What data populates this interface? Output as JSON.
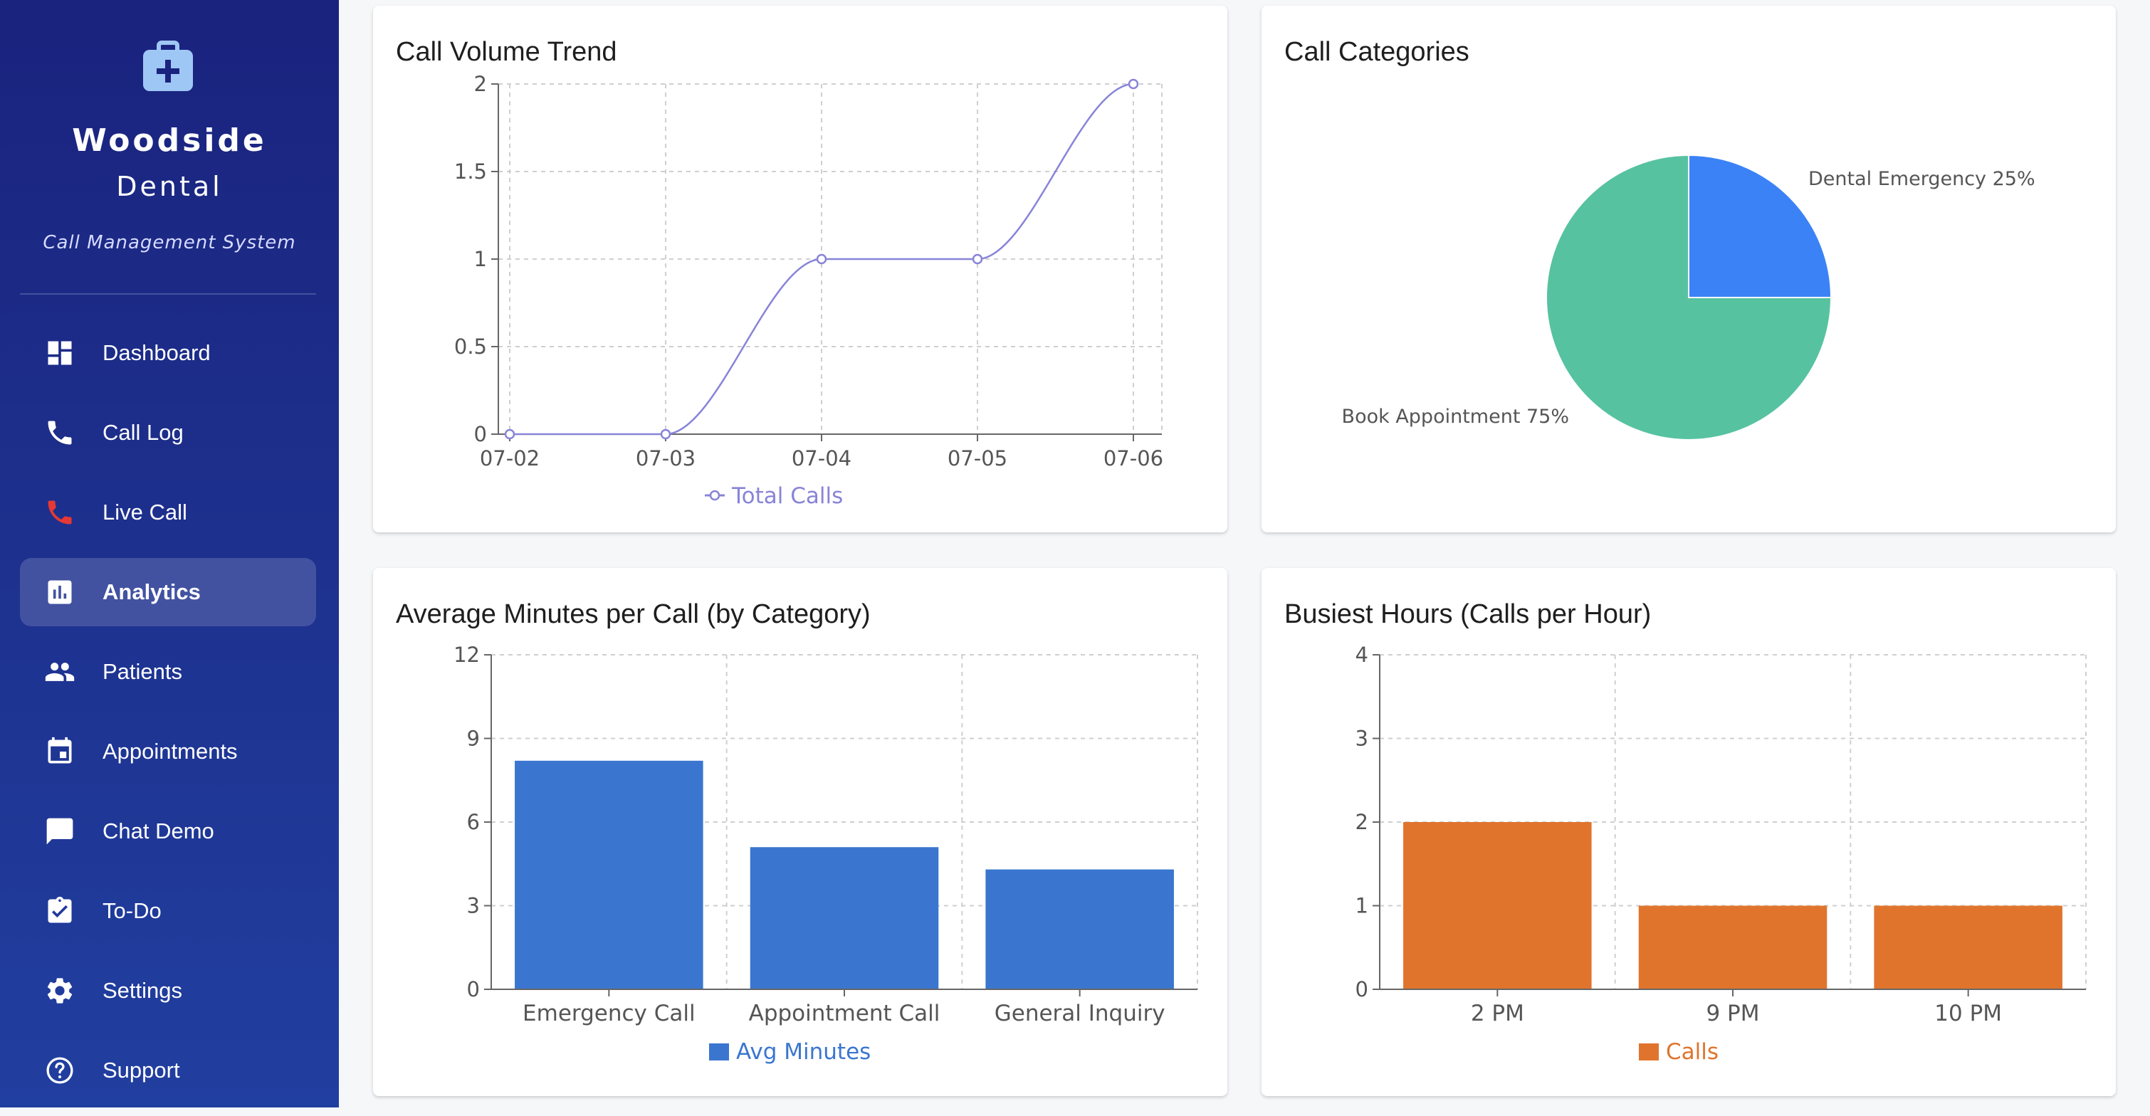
{
  "brand": {
    "name_line1": "Woodside",
    "name_line2": "Dental",
    "tagline": "Call Management System",
    "logo_icon": "medical-kit-icon"
  },
  "sidebar": {
    "items": [
      {
        "label": "Dashboard",
        "icon": "dashboard-icon",
        "active": false
      },
      {
        "label": "Call Log",
        "icon": "phone-icon",
        "active": false
      },
      {
        "label": "Live Call",
        "icon": "phone-live-icon",
        "active": false
      },
      {
        "label": "Analytics",
        "icon": "analytics-icon",
        "active": true
      },
      {
        "label": "Patients",
        "icon": "people-icon",
        "active": false
      },
      {
        "label": "Appointments",
        "icon": "calendar-icon",
        "active": false
      },
      {
        "label": "Chat Demo",
        "icon": "chat-icon",
        "active": false
      },
      {
        "label": "To-Do",
        "icon": "clipboard-check-icon",
        "active": false
      },
      {
        "label": "Settings",
        "icon": "gear-icon",
        "active": false
      },
      {
        "label": "Support",
        "icon": "help-icon",
        "active": false
      }
    ]
  },
  "colors": {
    "line": "#8884d8",
    "pie_emergency": "#3b82f6",
    "pie_appointment": "#56c2a0",
    "bar_minutes": "#3a76cf",
    "bar_calls": "#e0742d",
    "live_call_icon": "#e53935"
  },
  "cards": {
    "call_volume": {
      "title": "Call Volume Trend"
    },
    "call_categories": {
      "title": "Call Categories"
    },
    "avg_minutes": {
      "title": "Average Minutes per Call (by Category)"
    },
    "busiest_hours": {
      "title": "Busiest Hours (Calls per Hour)"
    }
  },
  "chart_data": [
    {
      "type": "line",
      "title": "Call Volume Trend",
      "x": [
        "07-02",
        "07-03",
        "07-04",
        "07-05",
        "07-06"
      ],
      "series": [
        {
          "name": "Total Calls",
          "values": [
            0,
            0,
            1,
            1,
            2
          ]
        }
      ],
      "yticks": [
        "0",
        "0.5",
        "1",
        "1.5",
        "2"
      ],
      "ylim": [
        0,
        2
      ],
      "grid": true,
      "legend": "bottom"
    },
    {
      "type": "pie",
      "title": "Call Categories",
      "slices": [
        {
          "label": "Dental Emergency 25%",
          "value": 25
        },
        {
          "label": "Book Appointment 75%",
          "value": 75
        }
      ]
    },
    {
      "type": "bar",
      "title": "Average Minutes per Call (by Category)",
      "categories": [
        "Emergency Call",
        "Appointment Call",
        "General Inquiry"
      ],
      "series": [
        {
          "name": "Avg Minutes",
          "values": [
            8.2,
            5.1,
            4.3
          ]
        }
      ],
      "yticks": [
        "0",
        "3",
        "6",
        "9",
        "12"
      ],
      "ylim": [
        0,
        12
      ],
      "grid": true,
      "legend": "bottom"
    },
    {
      "type": "bar",
      "title": "Busiest Hours (Calls per Hour)",
      "categories": [
        "2 PM",
        "9 PM",
        "10 PM"
      ],
      "series": [
        {
          "name": "Calls",
          "values": [
            2,
            1,
            1
          ]
        }
      ],
      "yticks": [
        "0",
        "1",
        "2",
        "3",
        "4"
      ],
      "ylim": [
        0,
        4
      ],
      "grid": true,
      "legend": "bottom"
    }
  ]
}
